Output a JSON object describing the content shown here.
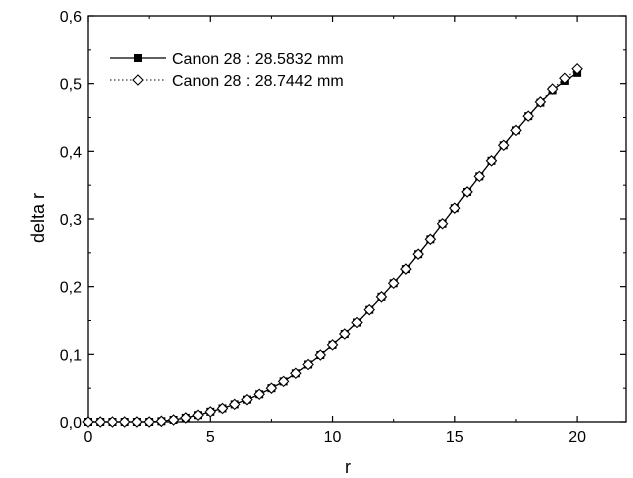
{
  "chart_data": {
    "type": "line",
    "xlabel": "r",
    "ylabel": "delta r",
    "xlim": [
      0,
      22
    ],
    "ylim": [
      0.0,
      0.6
    ],
    "x_ticks": [
      "0",
      "5",
      "10",
      "15",
      "20"
    ],
    "y_ticks": [
      "0,0",
      "0,1",
      "0,2",
      "0,3",
      "0,4",
      "0,5",
      "0,6"
    ],
    "grid": false,
    "legend_position": "top-left",
    "series": [
      {
        "name": "Canon 28 : 28.5832 mm",
        "style": "solid line with filled square markers",
        "color": "#000000",
        "x": [
          0,
          0.5,
          1,
          1.5,
          2,
          2.5,
          3,
          3.5,
          4,
          4.5,
          5,
          5.5,
          6,
          6.5,
          7,
          7.5,
          8,
          8.5,
          9,
          9.5,
          10,
          10.5,
          11,
          11.5,
          12,
          12.5,
          13,
          13.5,
          14,
          14.5,
          15,
          15.5,
          16,
          16.5,
          17,
          17.5,
          18,
          18.5,
          19,
          19.5,
          20
        ],
        "y": [
          0.0,
          0.0,
          0.0,
          0.0,
          0.0,
          0.0,
          0.001,
          0.003,
          0.006,
          0.01,
          0.015,
          0.02,
          0.026,
          0.033,
          0.041,
          0.05,
          0.06,
          0.072,
          0.085,
          0.099,
          0.114,
          0.13,
          0.147,
          0.166,
          0.185,
          0.205,
          0.226,
          0.248,
          0.27,
          0.293,
          0.316,
          0.34,
          0.363,
          0.386,
          0.409,
          0.431,
          0.452,
          0.472,
          0.49,
          0.504,
          0.516
        ]
      },
      {
        "name": "Canon 28 : 28.7442 mm",
        "style": "dotted line with open diamond markers",
        "color": "#000000",
        "x": [
          0,
          0.5,
          1,
          1.5,
          2,
          2.5,
          3,
          3.5,
          4,
          4.5,
          5,
          5.5,
          6,
          6.5,
          7,
          7.5,
          8,
          8.5,
          9,
          9.5,
          10,
          10.5,
          11,
          11.5,
          12,
          12.5,
          13,
          13.5,
          14,
          14.5,
          15,
          15.5,
          16,
          16.5,
          17,
          17.5,
          18,
          18.5,
          19,
          19.5,
          20
        ],
        "y": [
          0.0,
          0.0,
          0.0,
          0.0,
          0.0,
          0.0,
          0.001,
          0.003,
          0.006,
          0.01,
          0.015,
          0.02,
          0.026,
          0.033,
          0.041,
          0.05,
          0.06,
          0.072,
          0.085,
          0.099,
          0.114,
          0.13,
          0.147,
          0.166,
          0.185,
          0.205,
          0.226,
          0.248,
          0.27,
          0.293,
          0.316,
          0.34,
          0.363,
          0.386,
          0.409,
          0.431,
          0.452,
          0.473,
          0.492,
          0.508,
          0.522
        ]
      }
    ]
  }
}
